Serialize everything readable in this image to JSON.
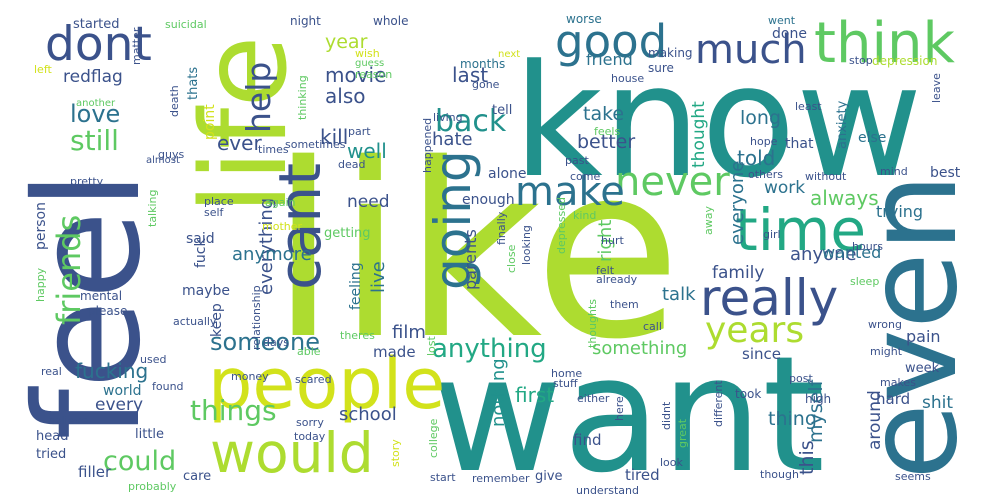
{
  "words": [
    {
      "text": "like",
      "color": "#addc30"
    },
    {
      "text": "want",
      "color": "#21918c"
    },
    {
      "text": "know",
      "color": "#21918c"
    },
    {
      "text": "feel",
      "color": "#3b528b"
    },
    {
      "text": "life",
      "color": "#addc30"
    },
    {
      "text": "even",
      "color": "#2c728e"
    },
    {
      "text": "people",
      "color": "#d2e21b"
    },
    {
      "text": "time",
      "color": "#22a884"
    },
    {
      "text": "would",
      "color": "#addc30"
    },
    {
      "text": "really",
      "color": "#3b528b"
    },
    {
      "text": "think",
      "color": "#5ec962"
    },
    {
      "text": "cant",
      "color": "#3b528b"
    },
    {
      "text": "going",
      "color": "#2c728e"
    },
    {
      "text": "dont",
      "color": "#3b528b"
    },
    {
      "text": "good",
      "color": "#2c728e"
    },
    {
      "text": "much",
      "color": "#3b528b"
    },
    {
      "text": "never",
      "color": "#5ec962"
    },
    {
      "text": "make",
      "color": "#2c728e"
    },
    {
      "text": "years",
      "color": "#addc30"
    },
    {
      "text": "friends",
      "color": "#5ec962"
    },
    {
      "text": "help",
      "color": "#3b528b"
    },
    {
      "text": "back",
      "color": "#21918c"
    },
    {
      "text": "still",
      "color": "#5ec962"
    },
    {
      "text": "love",
      "color": "#2c728e"
    },
    {
      "text": "things",
      "color": "#5ec962"
    },
    {
      "text": "someone",
      "color": "#2c728e"
    },
    {
      "text": "anything",
      "color": "#22a884"
    },
    {
      "text": "could",
      "color": "#5ec962"
    },
    {
      "text": "fucking",
      "color": "#2c728e"
    },
    {
      "text": "redflag",
      "color": "#3b528b"
    },
    {
      "text": "started",
      "color": "#3b528b"
    },
    {
      "text": "suicidal",
      "color": "#5ec962"
    },
    {
      "text": "night",
      "color": "#3b528b"
    },
    {
      "text": "whole",
      "color": "#3b528b"
    },
    {
      "text": "worse",
      "color": "#2c728e"
    },
    {
      "text": "went",
      "color": "#2c728e"
    },
    {
      "text": "done",
      "color": "#3b528b"
    },
    {
      "text": "year",
      "color": "#addc30"
    },
    {
      "text": "movie",
      "color": "#3b528b"
    },
    {
      "text": "better",
      "color": "#3b528b"
    },
    {
      "text": "friend",
      "color": "#2c728e"
    },
    {
      "text": "last",
      "color": "#3b528b"
    },
    {
      "text": "also",
      "color": "#3b528b"
    },
    {
      "text": "kill",
      "color": "#3b528b"
    },
    {
      "text": "take",
      "color": "#2c728e"
    },
    {
      "text": "long",
      "color": "#2c728e"
    },
    {
      "text": "everyone",
      "color": "#2c728e"
    },
    {
      "text": "thought",
      "color": "#22a884"
    },
    {
      "text": "hate",
      "color": "#3b528b"
    },
    {
      "text": "well",
      "color": "#21918c"
    },
    {
      "text": "ever",
      "color": "#3b528b"
    },
    {
      "text": "told",
      "color": "#2c728e"
    },
    {
      "text": "always",
      "color": "#5ec962"
    },
    {
      "text": "work",
      "color": "#2c728e"
    },
    {
      "text": "need",
      "color": "#3b528b"
    },
    {
      "text": "everything",
      "color": "#3b528b"
    },
    {
      "text": "anymore",
      "color": "#2c728e"
    },
    {
      "text": "anyone",
      "color": "#3b528b"
    },
    {
      "text": "trying",
      "color": "#2c728e"
    },
    {
      "text": "wanted",
      "color": "#2c728e"
    },
    {
      "text": "family",
      "color": "#3b528b"
    },
    {
      "text": "talk",
      "color": "#2c728e"
    },
    {
      "text": "parents",
      "color": "#3b528b"
    },
    {
      "text": "right",
      "color": "#5ec962"
    },
    {
      "text": "live",
      "color": "#2c728e"
    },
    {
      "text": "film",
      "color": "#3b528b"
    },
    {
      "text": "made",
      "color": "#3b528b"
    },
    {
      "text": "something",
      "color": "#5ec962"
    },
    {
      "text": "since",
      "color": "#3b528b"
    },
    {
      "text": "pain",
      "color": "#3b528b"
    },
    {
      "text": "school",
      "color": "#3b528b"
    },
    {
      "text": "first",
      "color": "#22a884"
    },
    {
      "text": "nothing",
      "color": "#21918c"
    },
    {
      "text": "myself",
      "color": "#2c728e"
    },
    {
      "text": "thing",
      "color": "#2c728e"
    },
    {
      "text": "this",
      "color": "#3b528b"
    },
    {
      "text": "around",
      "color": "#3b528b"
    },
    {
      "text": "shit",
      "color": "#2c728e"
    },
    {
      "text": "hard",
      "color": "#3b528b"
    },
    {
      "text": "every",
      "color": "#3b528b"
    },
    {
      "text": "person",
      "color": "#3b528b"
    },
    {
      "text": "said",
      "color": "#3b528b"
    },
    {
      "text": "fuck",
      "color": "#3b528b"
    },
    {
      "text": "maybe",
      "color": "#3b528b"
    },
    {
      "text": "keep",
      "color": "#3b528b"
    },
    {
      "text": "feeling",
      "color": "#2c728e"
    },
    {
      "text": "getting",
      "color": "#5ec962"
    },
    {
      "text": "point",
      "color": "#d2e21b"
    },
    {
      "text": "thats",
      "color": "#2c728e"
    },
    {
      "text": "enough",
      "color": "#3b528b"
    },
    {
      "text": "alone",
      "color": "#3b528b"
    },
    {
      "text": "tired",
      "color": "#3b528b"
    },
    {
      "text": "find",
      "color": "#3b528b"
    },
    {
      "text": "give",
      "color": "#3b528b"
    },
    {
      "text": "care",
      "color": "#3b528b"
    },
    {
      "text": "filler",
      "color": "#3b528b"
    },
    {
      "text": "tried",
      "color": "#3b528b"
    },
    {
      "text": "little",
      "color": "#3b528b"
    },
    {
      "text": "world",
      "color": "#2c728e"
    },
    {
      "text": "head",
      "color": "#3b528b"
    },
    {
      "text": "best",
      "color": "#3b528b"
    },
    {
      "text": "else",
      "color": "#2c728e"
    },
    {
      "text": "mind",
      "color": "#3b528b"
    },
    {
      "text": "week",
      "color": "#3b528b"
    },
    {
      "text": "high",
      "color": "#3b528b"
    },
    {
      "text": "took",
      "color": "#3b528b"
    },
    {
      "text": "that",
      "color": "#3b528b"
    },
    {
      "text": "hope",
      "color": "#3b528b"
    },
    {
      "text": "least",
      "color": "#3b528b"
    },
    {
      "text": "anxiety",
      "color": "#2c728e"
    },
    {
      "text": "stop",
      "color": "#3b528b"
    },
    {
      "text": "depression",
      "color": "#addc30"
    },
    {
      "text": "leave",
      "color": "#3b528b"
    },
    {
      "text": "months",
      "color": "#2c728e"
    },
    {
      "text": "house",
      "color": "#3b528b"
    },
    {
      "text": "sure",
      "color": "#3b528b"
    },
    {
      "text": "making",
      "color": "#3b528b"
    },
    {
      "text": "gone",
      "color": "#3b528b"
    },
    {
      "text": "tell",
      "color": "#3b528b"
    },
    {
      "text": "reason",
      "color": "#5ec962"
    },
    {
      "text": "guess",
      "color": "#5ec962"
    },
    {
      "text": "wish",
      "color": "#d2e21b"
    },
    {
      "text": "next",
      "color": "#d2e21b"
    },
    {
      "text": "matter",
      "color": "#3b528b"
    },
    {
      "text": "left",
      "color": "#d2e21b"
    },
    {
      "text": "another",
      "color": "#5ec962"
    },
    {
      "text": "death",
      "color": "#3b528b"
    },
    {
      "text": "thinking",
      "color": "#5ec962"
    },
    {
      "text": "living",
      "color": "#3b528b"
    },
    {
      "text": "part",
      "color": "#3b528b"
    },
    {
      "text": "guys",
      "color": "#3b528b"
    },
    {
      "text": "pretty",
      "color": "#3b528b"
    },
    {
      "text": "almost",
      "color": "#3b528b"
    },
    {
      "text": "times",
      "color": "#3b528b"
    },
    {
      "text": "sometimes",
      "color": "#3b528b"
    },
    {
      "text": "dead",
      "color": "#3b528b"
    },
    {
      "text": "happened",
      "color": "#3b528b"
    },
    {
      "text": "past",
      "color": "#3b528b"
    },
    {
      "text": "feels",
      "color": "#5ec962"
    },
    {
      "text": "come",
      "color": "#3b528b"
    },
    {
      "text": "others",
      "color": "#3b528b"
    },
    {
      "text": "without",
      "color": "#3b528b"
    },
    {
      "text": "away",
      "color": "#5ec962"
    },
    {
      "text": "girl",
      "color": "#3b528b"
    },
    {
      "text": "kind",
      "color": "#5ec962"
    },
    {
      "text": "depressed",
      "color": "#5ec962"
    },
    {
      "text": "finally",
      "color": "#3b528b"
    },
    {
      "text": "hurt",
      "color": "#3b528b"
    },
    {
      "text": "already",
      "color": "#3b528b"
    },
    {
      "text": "felt",
      "color": "#3b528b"
    },
    {
      "text": "close",
      "color": "#5ec962"
    },
    {
      "text": "looking",
      "color": "#3b528b"
    },
    {
      "text": "again",
      "color": "#5ec962"
    },
    {
      "text": "self",
      "color": "#3b528b"
    },
    {
      "text": "place",
      "color": "#3b528b"
    },
    {
      "text": "talking",
      "color": "#5ec962"
    },
    {
      "text": "mother",
      "color": "#d2e21b"
    },
    {
      "text": "relationship",
      "color": "#3b528b"
    },
    {
      "text": "days",
      "color": "#3b528b"
    },
    {
      "text": "able",
      "color": "#5ec962"
    },
    {
      "text": "theres",
      "color": "#5ec962"
    },
    {
      "text": "lost",
      "color": "#5ec962"
    },
    {
      "text": "happy",
      "color": "#5ec962"
    },
    {
      "text": "mental",
      "color": "#3b528b"
    },
    {
      "text": "please",
      "color": "#3b528b"
    },
    {
      "text": "actually",
      "color": "#3b528b"
    },
    {
      "text": "used",
      "color": "#3b528b"
    },
    {
      "text": "real",
      "color": "#3b528b"
    },
    {
      "text": "believe",
      "color": "#3b528b"
    },
    {
      "text": "found",
      "color": "#3b528b"
    },
    {
      "text": "money",
      "color": "#3b528b"
    },
    {
      "text": "scared",
      "color": "#3b528b"
    },
    {
      "text": "sorry",
      "color": "#3b528b"
    },
    {
      "text": "today",
      "color": "#3b528b"
    },
    {
      "text": "probably",
      "color": "#5ec962"
    },
    {
      "text": "story",
      "color": "#d2e21b"
    },
    {
      "text": "college",
      "color": "#5ec962"
    },
    {
      "text": "start",
      "color": "#3b528b"
    },
    {
      "text": "remember",
      "color": "#3b528b"
    },
    {
      "text": "understand",
      "color": "#3b528b"
    },
    {
      "text": "didnt",
      "color": "#3b528b"
    },
    {
      "text": "here",
      "color": "#3b528b"
    },
    {
      "text": "great",
      "color": "#5ec962"
    },
    {
      "text": "home",
      "color": "#3b528b"
    },
    {
      "text": "stuff",
      "color": "#3b528b"
    },
    {
      "text": "either",
      "color": "#3b528b"
    },
    {
      "text": "call",
      "color": "#3b528b"
    },
    {
      "text": "thoughts",
      "color": "#5ec962"
    },
    {
      "text": "them",
      "color": "#3b528b"
    },
    {
      "text": "hours",
      "color": "#3b528b"
    },
    {
      "text": "sleep",
      "color": "#5ec962"
    },
    {
      "text": "wrong",
      "color": "#3b528b"
    },
    {
      "text": "might",
      "color": "#3b528b"
    },
    {
      "text": "makes",
      "color": "#3b528b"
    },
    {
      "text": "post",
      "color": "#3b528b"
    },
    {
      "text": "different",
      "color": "#3b528b"
    },
    {
      "text": "look",
      "color": "#3b528b"
    },
    {
      "text": "though",
      "color": "#3b528b"
    },
    {
      "text": "seems",
      "color": "#3b528b"
    }
  ]
}
